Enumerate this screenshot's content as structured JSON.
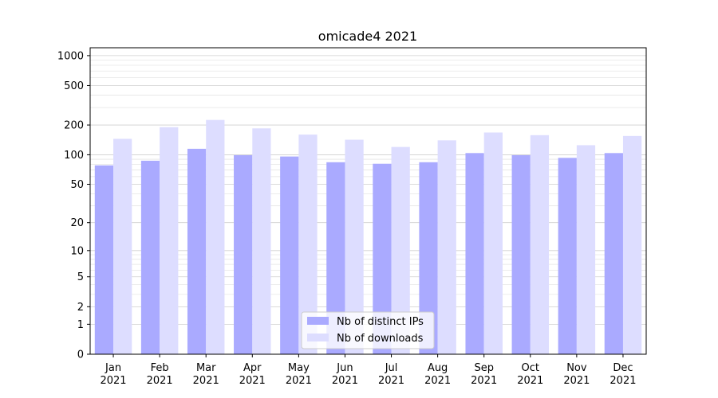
{
  "chart_data": {
    "type": "bar",
    "title": "omicade4 2021",
    "xlabel": "",
    "ylabel": "",
    "yscale": "symlog",
    "ylim": [
      0,
      1200
    ],
    "yticks": [
      0,
      1,
      2,
      5,
      10,
      20,
      50,
      100,
      200,
      500,
      1000
    ],
    "ytick_labels": [
      "0",
      "1",
      "2",
      "5",
      "10",
      "20",
      "50",
      "100",
      "200",
      "500",
      "1000"
    ],
    "categories": [
      "Jan\n2021",
      "Feb\n2021",
      "Mar\n2021",
      "Apr\n2021",
      "May\n2021",
      "Jun\n2021",
      "Jul\n2021",
      "Aug\n2021",
      "Sep\n2021",
      "Oct\n2021",
      "Nov\n2021",
      "Dec\n2021"
    ],
    "series": [
      {
        "name": "Nb of distinct IPs",
        "color": "#aaaaff",
        "values": [
          78,
          87,
          115,
          99,
          96,
          84,
          81,
          84,
          104,
          99,
          93,
          104
        ]
      },
      {
        "name": "Nb of downloads",
        "color": "#ddddff",
        "values": [
          145,
          190,
          225,
          185,
          160,
          142,
          120,
          140,
          168,
          158,
          125,
          155
        ]
      }
    ],
    "grid": true,
    "legend_position": "bottom-center"
  }
}
